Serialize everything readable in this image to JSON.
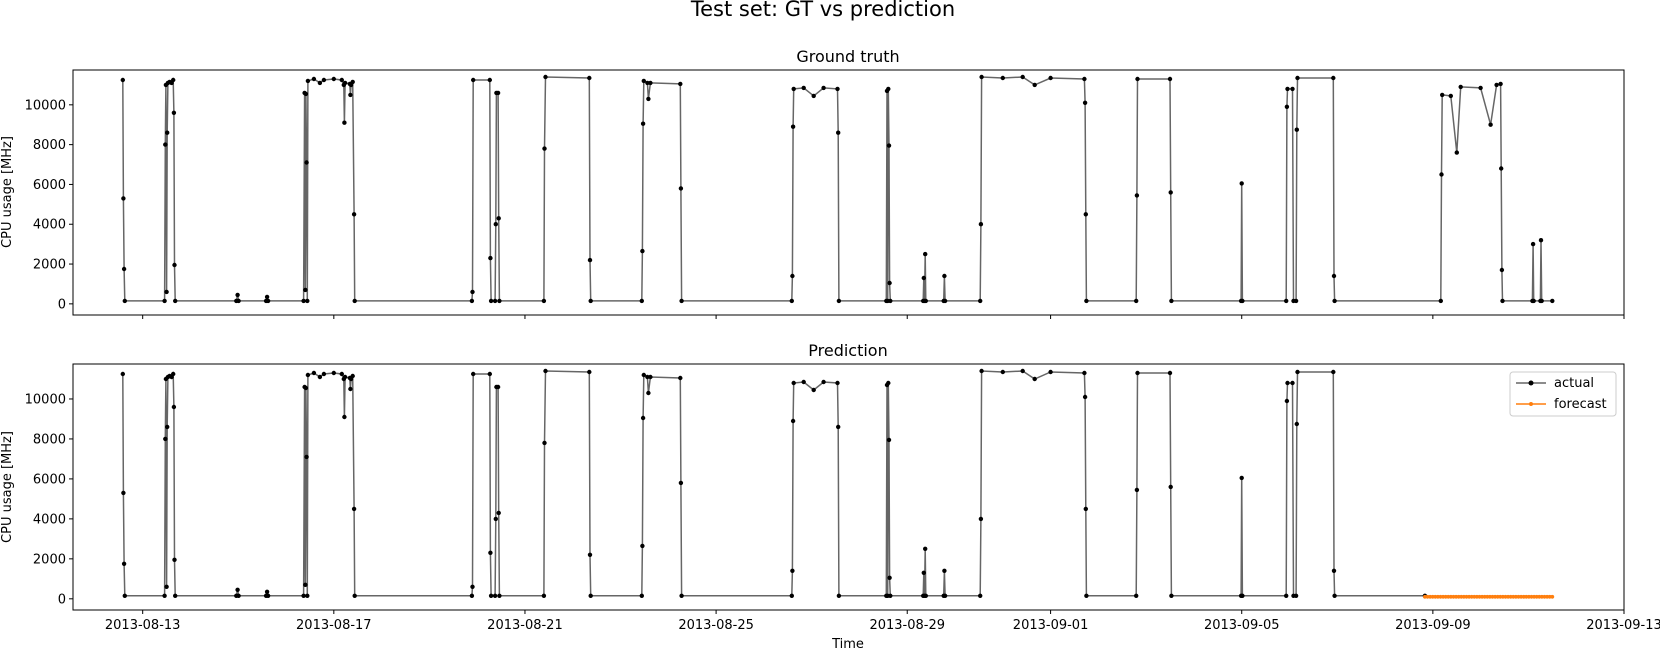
{
  "figure": {
    "suptitle": "Test set: GT vs prediction"
  },
  "colors": {
    "actual": "#000000",
    "forecast": "#ff7f0e",
    "frame": "#000000"
  },
  "chart_data": [
    {
      "type": "line",
      "title": "Ground truth",
      "xlabel": "",
      "ylabel": "CPU usage [MHz]",
      "x_ticks": [
        "2013-08-13",
        "2013-08-17",
        "2013-08-21",
        "2013-08-25",
        "2013-08-29",
        "2013-09-01",
        "2013-09-05",
        "2013-09-09",
        "2013-09-13"
      ],
      "x_tick_labels_visible": false,
      "xlim": [
        "2013-08-11T13:00",
        "2013-09-13T00:00"
      ],
      "y_ticks": [
        0,
        2000,
        4000,
        6000,
        8000,
        10000
      ],
      "ylim": [
        -560,
        11750
      ],
      "grid": false,
      "legend": null,
      "series": [
        {
          "name": "actual",
          "color": "#000000",
          "marker": "dot",
          "points": [
            [
              "2013-08-12T14:00",
              11250
            ],
            [
              "2013-08-12T14:20",
              5300
            ],
            [
              "2013-08-12T14:40",
              1750
            ],
            [
              "2013-08-12T15:00",
              150
            ],
            [
              "2013-08-13T11:00",
              150
            ],
            [
              "2013-08-13T11:20",
              8000
            ],
            [
              "2013-08-13T11:40",
              11000
            ],
            [
              "2013-08-13T12:00",
              600
            ],
            [
              "2013-08-13T12:20",
              8600
            ],
            [
              "2013-08-13T12:40",
              11100
            ],
            [
              "2013-08-13T13:30",
              11150
            ],
            [
              "2013-08-13T14:30",
              11100
            ],
            [
              "2013-08-13T15:20",
              11250
            ],
            [
              "2013-08-13T15:40",
              9600
            ],
            [
              "2013-08-13T16:00",
              1950
            ],
            [
              "2013-08-13T16:20",
              150
            ],
            [
              "2013-08-14T23:00",
              150
            ],
            [
              "2013-08-14T23:40",
              450
            ],
            [
              "2013-08-15T00:10",
              150
            ],
            [
              "2013-08-15T14:00",
              150
            ],
            [
              "2013-08-15T14:30",
              350
            ],
            [
              "2013-08-15T15:00",
              150
            ],
            [
              "2013-08-16T08:50",
              150
            ],
            [
              "2013-08-16T09:20",
              10600
            ],
            [
              "2013-08-16T09:40",
              700
            ],
            [
              "2013-08-16T10:00",
              10550
            ],
            [
              "2013-08-16T10:20",
              7100
            ],
            [
              "2013-08-16T10:40",
              150
            ],
            [
              "2013-08-16T11:00",
              11200
            ],
            [
              "2013-08-16T14:00",
              11300
            ],
            [
              "2013-08-16T17:00",
              11100
            ],
            [
              "2013-08-16T19:00",
              11250
            ],
            [
              "2013-08-17T00:00",
              11300
            ],
            [
              "2013-08-17T04:00",
              11250
            ],
            [
              "2013-08-17T05:00",
              11000
            ],
            [
              "2013-08-17T05:20",
              9100
            ],
            [
              "2013-08-17T05:40",
              11100
            ],
            [
              "2013-08-17T08:00",
              11050
            ],
            [
              "2013-08-17T08:20",
              10500
            ],
            [
              "2013-08-17T08:40",
              11000
            ],
            [
              "2013-08-17T09:30",
              11150
            ],
            [
              "2013-08-17T10:10",
              4500
            ],
            [
              "2013-08-17T10:30",
              150
            ],
            [
              "2013-08-19T21:20",
              150
            ],
            [
              "2013-08-19T21:40",
              600
            ],
            [
              "2013-08-19T22:00",
              11250
            ],
            [
              "2013-08-20T06:20",
              11250
            ],
            [
              "2013-08-20T06:40",
              2300
            ],
            [
              "2013-08-20T07:00",
              150
            ],
            [
              "2013-08-20T09:00",
              150
            ],
            [
              "2013-08-20T09:20",
              4000
            ],
            [
              "2013-08-20T09:40",
              10600
            ],
            [
              "2013-08-20T10:30",
              10600
            ],
            [
              "2013-08-20T10:50",
              4300
            ],
            [
              "2013-08-20T11:10",
              150
            ],
            [
              "2013-08-21T09:30",
              150
            ],
            [
              "2013-08-21T09:50",
              7800
            ],
            [
              "2013-08-21T10:20",
              11400
            ],
            [
              "2013-08-22T08:20",
              11350
            ],
            [
              "2013-08-22T08:40",
              2200
            ],
            [
              "2013-08-22T09:00",
              150
            ],
            [
              "2013-08-23T10:40",
              150
            ],
            [
              "2013-08-23T11:00",
              2650
            ],
            [
              "2013-08-23T11:20",
              9050
            ],
            [
              "2013-08-23T11:40",
              11200
            ],
            [
              "2013-08-23T13:30",
              11100
            ],
            [
              "2013-08-23T14:00",
              10300
            ],
            [
              "2013-08-23T15:00",
              11100
            ],
            [
              "2013-08-24T06:00",
              11050
            ],
            [
              "2013-08-24T06:20",
              5800
            ],
            [
              "2013-08-24T06:40",
              150
            ],
            [
              "2013-08-26T14:00",
              150
            ],
            [
              "2013-08-26T14:20",
              1400
            ],
            [
              "2013-08-26T14:40",
              8900
            ],
            [
              "2013-08-26T15:00",
              10800
            ],
            [
              "2013-08-26T20:00",
              10850
            ],
            [
              "2013-08-27T01:00",
              10450
            ],
            [
              "2013-08-27T06:00",
              10850
            ],
            [
              "2013-08-27T13:00",
              10800
            ],
            [
              "2013-08-27T13:20",
              8600
            ],
            [
              "2013-08-27T13:40",
              150
            ],
            [
              "2013-08-28T13:30",
              150
            ],
            [
              "2013-08-28T13:50",
              10700
            ],
            [
              "2013-08-28T14:10",
              150
            ],
            [
              "2013-08-28T14:30",
              10800
            ],
            [
              "2013-08-28T14:50",
              7950
            ],
            [
              "2013-08-28T15:10",
              1050
            ],
            [
              "2013-08-28T15:30",
              150
            ],
            [
              "2013-08-29T08:00",
              150
            ],
            [
              "2013-08-29T08:20",
              1300
            ],
            [
              "2013-08-29T08:40",
              150
            ],
            [
              "2013-08-29T09:00",
              2500
            ],
            [
              "2013-08-29T09:20",
              150
            ],
            [
              "2013-08-29T18:20",
              150
            ],
            [
              "2013-08-29T18:40",
              1400
            ],
            [
              "2013-08-29T19:00",
              150
            ],
            [
              "2013-08-30T12:40",
              150
            ],
            [
              "2013-08-30T13:00",
              4000
            ],
            [
              "2013-08-30T13:20",
              11400
            ],
            [
              "2013-08-31T00:00",
              11350
            ],
            [
              "2013-08-31T10:00",
              11400
            ],
            [
              "2013-08-31T16:00",
              11000
            ],
            [
              "2013-09-01T00:00",
              11350
            ],
            [
              "2013-09-01T17:00",
              11300
            ],
            [
              "2013-09-01T17:20",
              10100
            ],
            [
              "2013-09-01T17:40",
              4500
            ],
            [
              "2013-09-01T18:00",
              150
            ],
            [
              "2013-09-02T19:00",
              150
            ],
            [
              "2013-09-02T19:20",
              5450
            ],
            [
              "2013-09-02T19:40",
              11300
            ],
            [
              "2013-09-03T12:00",
              11300
            ],
            [
              "2013-09-03T12:20",
              5600
            ],
            [
              "2013-09-03T12:40",
              150
            ],
            [
              "2013-09-04T23:40",
              150
            ],
            [
              "2013-09-05T00:00",
              6050
            ],
            [
              "2013-09-05T00:20",
              150
            ],
            [
              "2013-09-05T22:20",
              150
            ],
            [
              "2013-09-05T22:40",
              9900
            ],
            [
              "2013-09-05T23:00",
              10800
            ],
            [
              "2013-09-06T01:30",
              10800
            ],
            [
              "2013-09-06T02:00",
              150
            ],
            [
              "2013-09-06T03:20",
              150
            ],
            [
              "2013-09-06T03:40",
              8750
            ],
            [
              "2013-09-06T04:00",
              11350
            ],
            [
              "2013-09-06T22:00",
              11350
            ],
            [
              "2013-09-06T22:20",
              1400
            ],
            [
              "2013-09-06T22:40",
              150
            ],
            [
              "2013-09-09T04:00",
              150
            ],
            [
              "2013-09-09T04:20",
              6500
            ],
            [
              "2013-09-09T04:40",
              10500
            ],
            [
              "2013-09-09T09:00",
              10450
            ],
            [
              "2013-09-09T12:00",
              7600
            ],
            [
              "2013-09-09T14:00",
              10900
            ],
            [
              "2013-09-10T00:00",
              10850
            ],
            [
              "2013-09-10T05:00",
              9000
            ],
            [
              "2013-09-10T08:00",
              11000
            ],
            [
              "2013-09-10T10:00",
              11050
            ],
            [
              "2013-09-10T10:20",
              6800
            ],
            [
              "2013-09-10T10:40",
              1700
            ],
            [
              "2013-09-10T11:00",
              150
            ],
            [
              "2013-09-11T02:00",
              150
            ],
            [
              "2013-09-11T02:20",
              3000
            ],
            [
              "2013-09-11T02:40",
              150
            ],
            [
              "2013-09-11T06:00",
              150
            ],
            [
              "2013-09-11T06:20",
              3200
            ],
            [
              "2013-09-11T06:40",
              150
            ],
            [
              "2013-09-11T12:00",
              150
            ]
          ]
        }
      ]
    },
    {
      "type": "line",
      "title": "Prediction",
      "xlabel": "Time",
      "ylabel": "CPU usage [MHz]",
      "x_ticks": [
        "2013-08-13",
        "2013-08-17",
        "2013-08-21",
        "2013-08-25",
        "2013-08-29",
        "2013-09-01",
        "2013-09-05",
        "2013-09-09",
        "2013-09-13"
      ],
      "x_tick_labels_visible": true,
      "xlim": [
        "2013-08-11T13:00",
        "2013-09-13T00:00"
      ],
      "y_ticks": [
        0,
        2000,
        4000,
        6000,
        8000,
        10000
      ],
      "ylim": [
        -560,
        11750
      ],
      "grid": false,
      "legend": "top-right",
      "series": [
        {
          "name": "actual",
          "color": "#000000",
          "marker": "dot",
          "same_as": "Ground truth actual, clipped at 2013-09-08T20:00"
        },
        {
          "name": "forecast",
          "color": "#ff7f0e",
          "marker": "dot",
          "x_start": "2013-09-08T20:00",
          "x_end": "2013-09-11T12:00",
          "value": 100
        }
      ]
    }
  ]
}
